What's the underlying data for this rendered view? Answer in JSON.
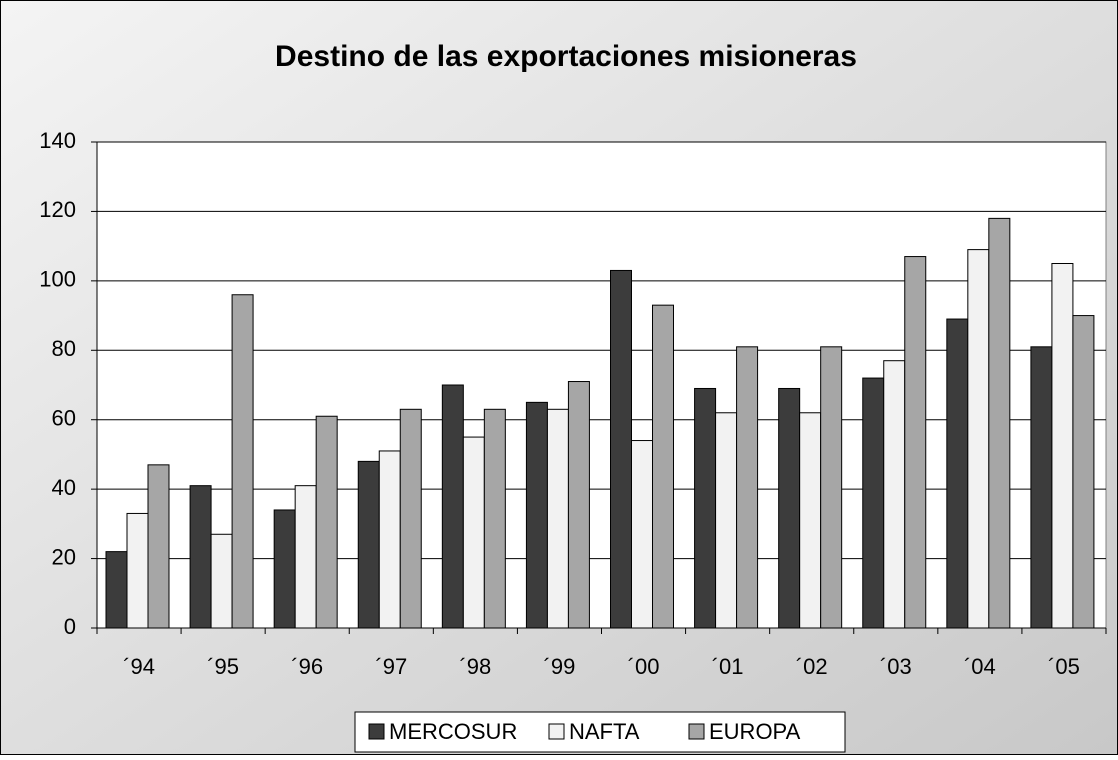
{
  "chart_data": {
    "type": "bar",
    "title": "Destino de las exportaciones misioneras",
    "categories": [
      "´94",
      "´95",
      "´96",
      "´97",
      "´98",
      "´99",
      "´00",
      "´01",
      "´02",
      "´03",
      "´04",
      "´05"
    ],
    "series": [
      {
        "name": "MERCOSUR",
        "color": "#3c3c3c",
        "values": [
          22,
          41,
          34,
          48,
          70,
          65,
          103,
          69,
          69,
          72,
          89,
          81
        ]
      },
      {
        "name": "NAFTA",
        "color": "#f2f2f2",
        "values": [
          33,
          27,
          41,
          51,
          55,
          63,
          54,
          62,
          62,
          77,
          109,
          105
        ]
      },
      {
        "name": "EUROPA",
        "color": "#a6a6a6",
        "values": [
          47,
          96,
          61,
          63,
          63,
          71,
          93,
          81,
          81,
          107,
          118,
          90
        ]
      }
    ],
    "ylim": [
      0,
      140
    ],
    "yticks": [
      0,
      20,
      40,
      60,
      80,
      100,
      120,
      140
    ],
    "grid": true,
    "legend": "bottom"
  }
}
